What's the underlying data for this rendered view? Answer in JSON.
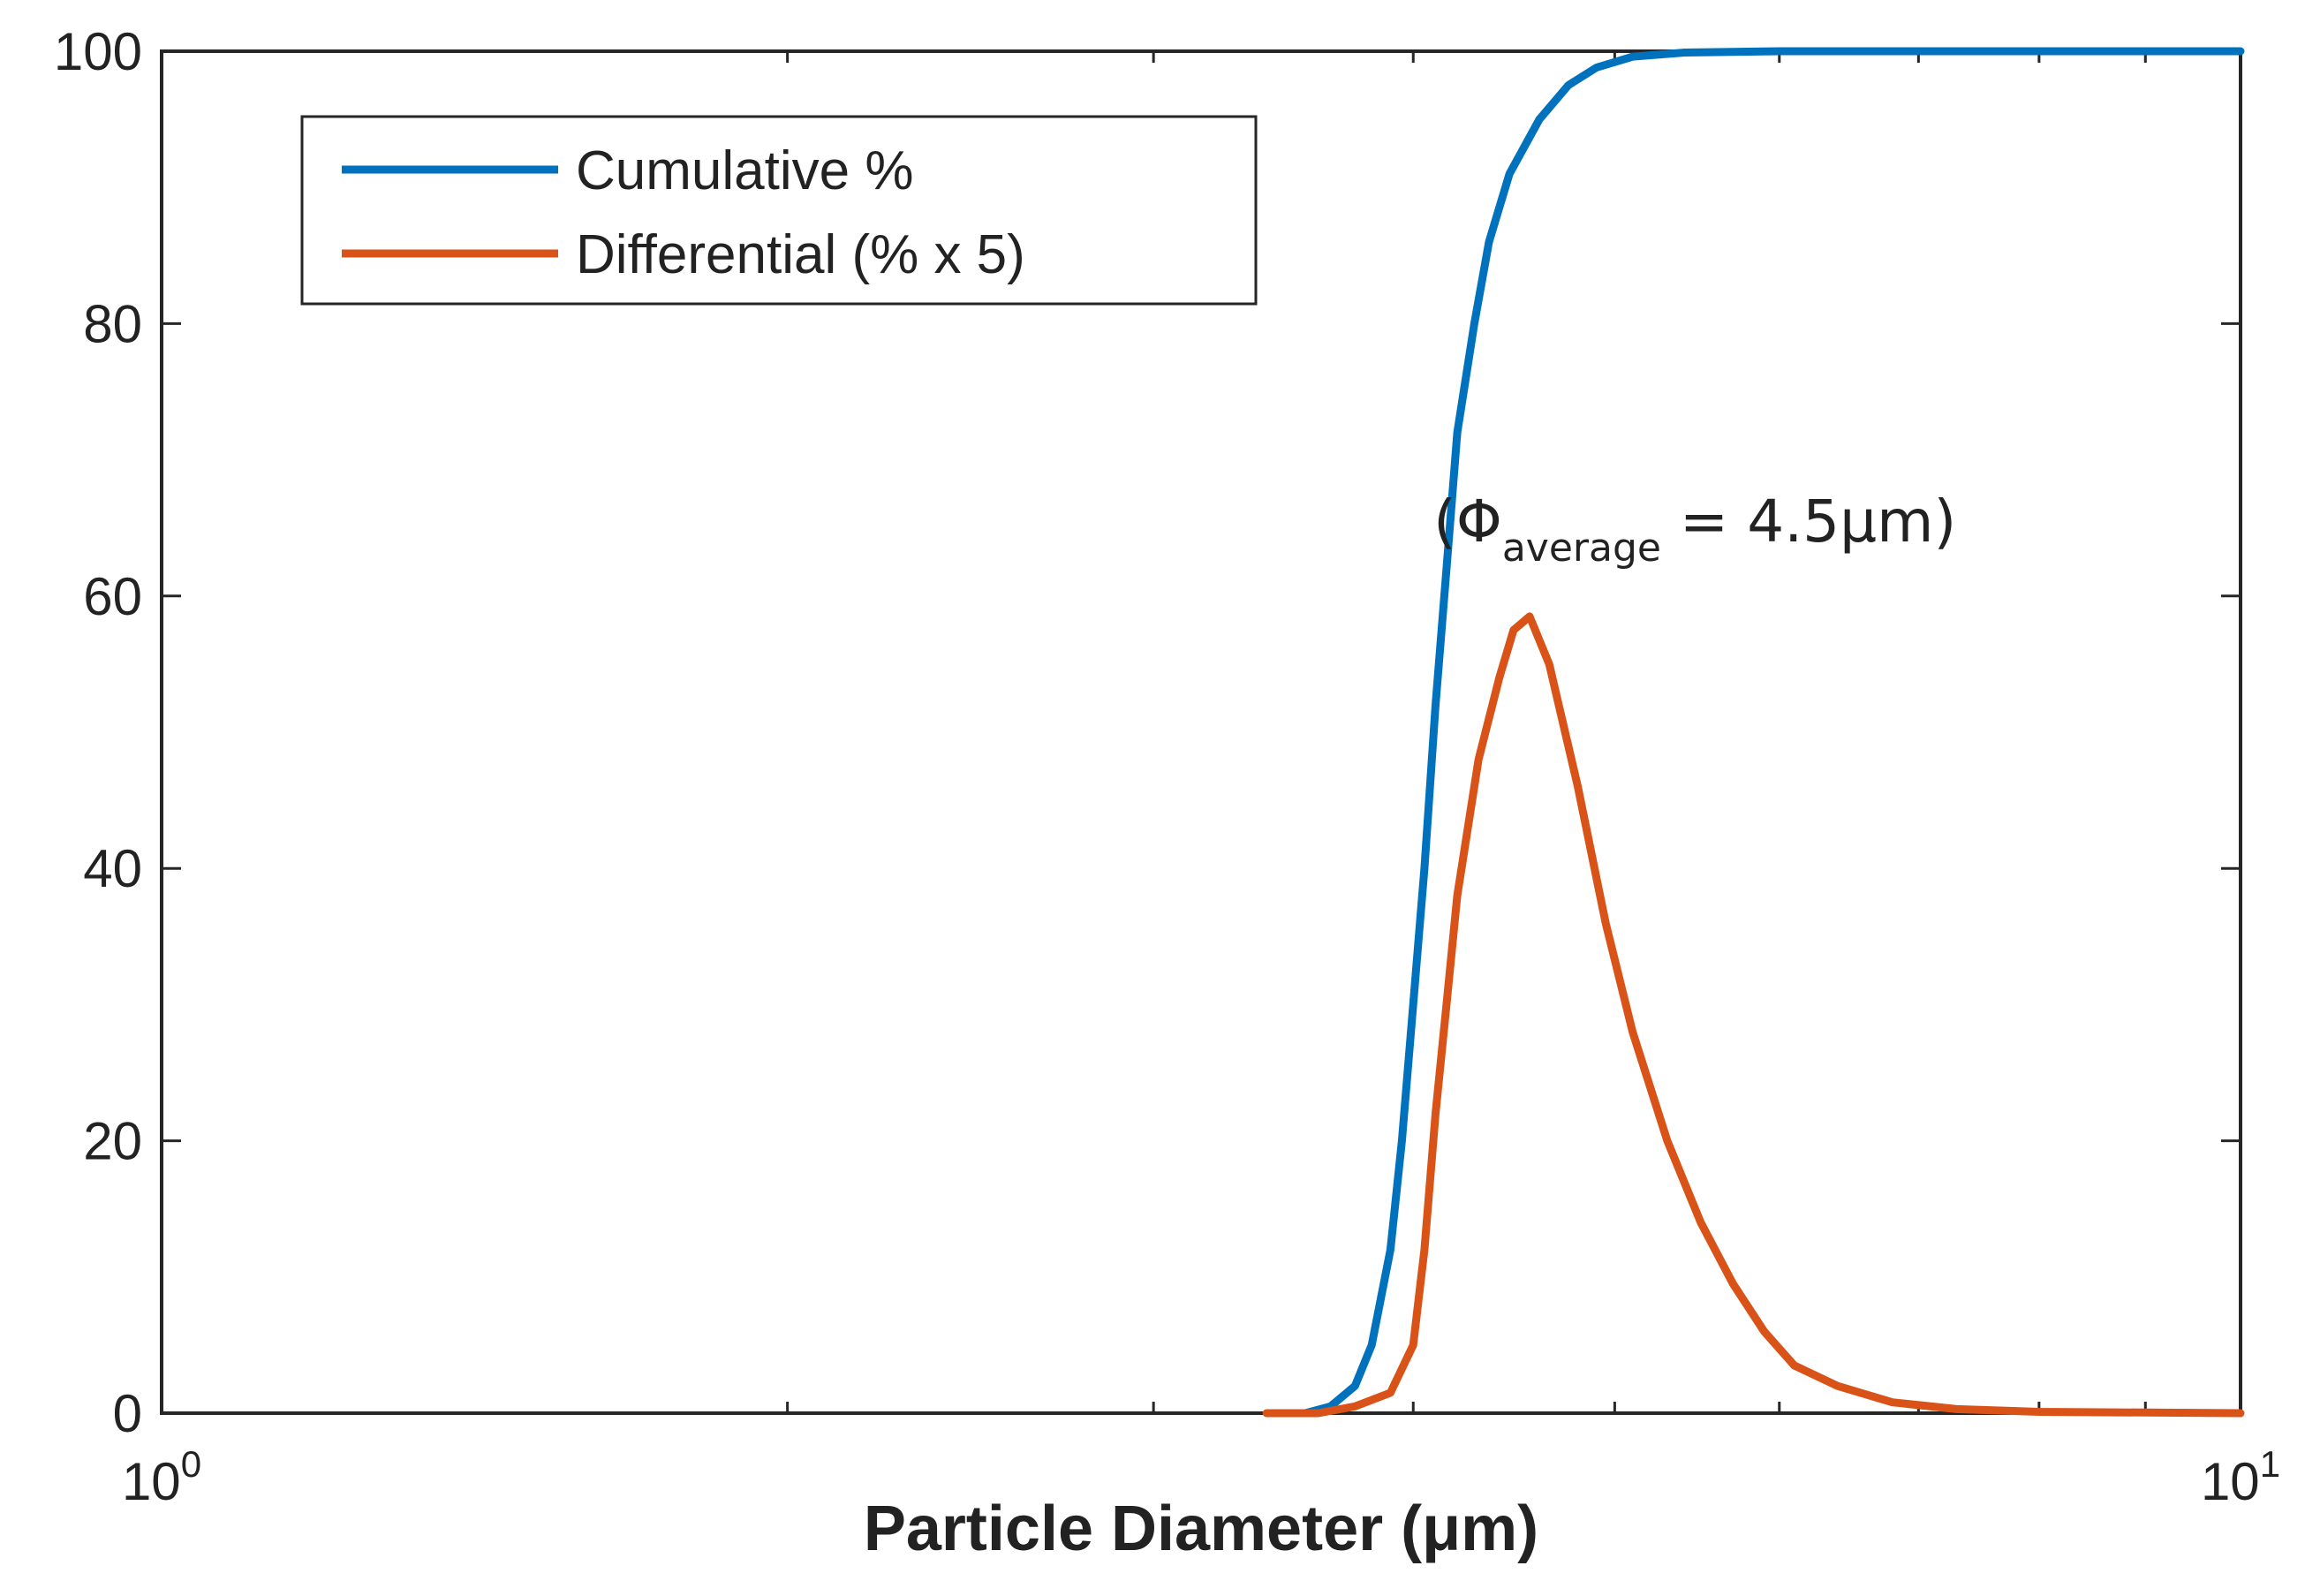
{
  "chart_data": {
    "type": "line",
    "title": "",
    "xlabel": "Particle Diameter (μm)",
    "ylabel": "",
    "xscale": "log",
    "xlim": [
      1,
      10
    ],
    "ylim": [
      0,
      100
    ],
    "x_ticks": [
      {
        "value": 1,
        "base": "10",
        "exp": "0"
      },
      {
        "value": 10,
        "base": "10",
        "exp": "1"
      }
    ],
    "y_ticks": [
      0,
      20,
      40,
      60,
      80,
      100
    ],
    "grid": false,
    "legend_position": "top-left",
    "annotation": {
      "open": "(",
      "symbol": "Φ",
      "subscript": "average",
      "rest": " = 4.5μm)",
      "x": 4.6,
      "y": 64
    },
    "series": [
      {
        "name": "Cumulative %",
        "color": "#0072BD",
        "points": [
          [
            3.55,
            0
          ],
          [
            3.65,
            0.5
          ],
          [
            3.75,
            2
          ],
          [
            3.82,
            5
          ],
          [
            3.9,
            12
          ],
          [
            3.95,
            20
          ],
          [
            4.0,
            30
          ],
          [
            4.05,
            40
          ],
          [
            4.1,
            52
          ],
          [
            4.15,
            62
          ],
          [
            4.2,
            72
          ],
          [
            4.28,
            80
          ],
          [
            4.35,
            86
          ],
          [
            4.45,
            91
          ],
          [
            4.6,
            95
          ],
          [
            4.75,
            97.5
          ],
          [
            4.9,
            98.8
          ],
          [
            5.1,
            99.6
          ],
          [
            5.4,
            99.9
          ],
          [
            6.0,
            100
          ],
          [
            7.0,
            100
          ],
          [
            10.0,
            100
          ]
        ]
      },
      {
        "name": "Differential (% x 5)",
        "color": "#D95319",
        "points": [
          [
            3.4,
            0
          ],
          [
            3.6,
            0
          ],
          [
            3.75,
            0.5
          ],
          [
            3.9,
            1.5
          ],
          [
            4.0,
            5
          ],
          [
            4.05,
            12
          ],
          [
            4.1,
            22
          ],
          [
            4.15,
            30
          ],
          [
            4.2,
            38
          ],
          [
            4.3,
            48
          ],
          [
            4.4,
            54
          ],
          [
            4.47,
            57.5
          ],
          [
            4.55,
            58.5
          ],
          [
            4.65,
            55
          ],
          [
            4.8,
            46
          ],
          [
            4.95,
            36
          ],
          [
            5.1,
            28
          ],
          [
            5.3,
            20
          ],
          [
            5.5,
            14
          ],
          [
            5.7,
            9.5
          ],
          [
            5.9,
            6
          ],
          [
            6.1,
            3.5
          ],
          [
            6.4,
            2
          ],
          [
            6.8,
            0.8
          ],
          [
            7.3,
            0.3
          ],
          [
            8.0,
            0.1
          ],
          [
            10.0,
            0
          ]
        ]
      }
    ]
  }
}
